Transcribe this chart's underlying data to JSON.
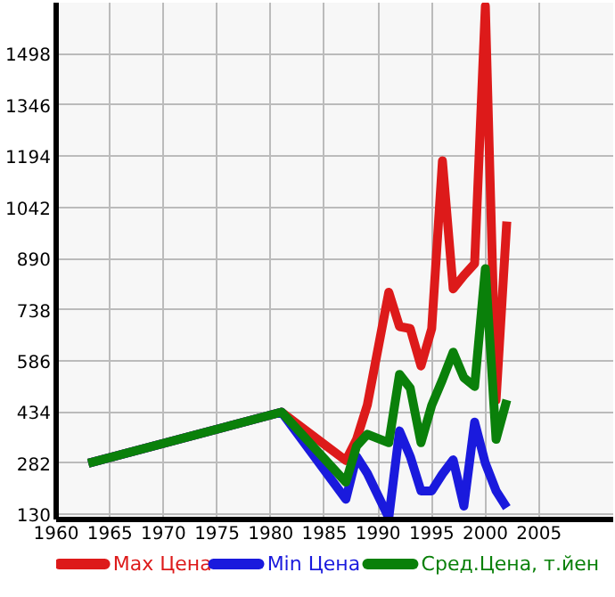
{
  "chart_data": {
    "type": "line",
    "x": [
      1963,
      1981,
      1987,
      1988,
      1989,
      1991,
      1992,
      1993,
      1994,
      1995,
      1996,
      1997,
      1998,
      1999,
      2000,
      2001,
      2002
    ],
    "series": [
      {
        "name": "Max Цена",
        "color": "#dd1a1a",
        "values": [
          282,
          434,
          290,
          353,
          455,
          790,
          688,
          682,
          571,
          682,
          1180,
          800,
          840,
          875,
          1640,
          470,
          1000
        ]
      },
      {
        "name": "Min Цена",
        "color": "#1a1add",
        "values": [
          282,
          434,
          175,
          302,
          252,
          120,
          378,
          302,
          200,
          200,
          250,
          292,
          155,
          404,
          282,
          200,
          150
        ]
      },
      {
        "name": "Сред.Цена, т.йен",
        "color": "#0a800a",
        "values": [
          282,
          434,
          226,
          333,
          368,
          343,
          546,
          505,
          343,
          454,
          530,
          612,
          536,
          510,
          860,
          353,
          470
        ]
      }
    ],
    "xlim": [
      1960,
      2012
    ],
    "ylim": [
      115,
      1650
    ],
    "xticks": [
      1960,
      1965,
      1970,
      1975,
      1980,
      1985,
      1990,
      1995,
      2000,
      2005
    ],
    "yticks": [
      130,
      282,
      434,
      586,
      738,
      890,
      1042,
      1194,
      1346,
      1498
    ],
    "grid": true,
    "legend": "bottom",
    "line_style": "solid",
    "marker": "none"
  }
}
